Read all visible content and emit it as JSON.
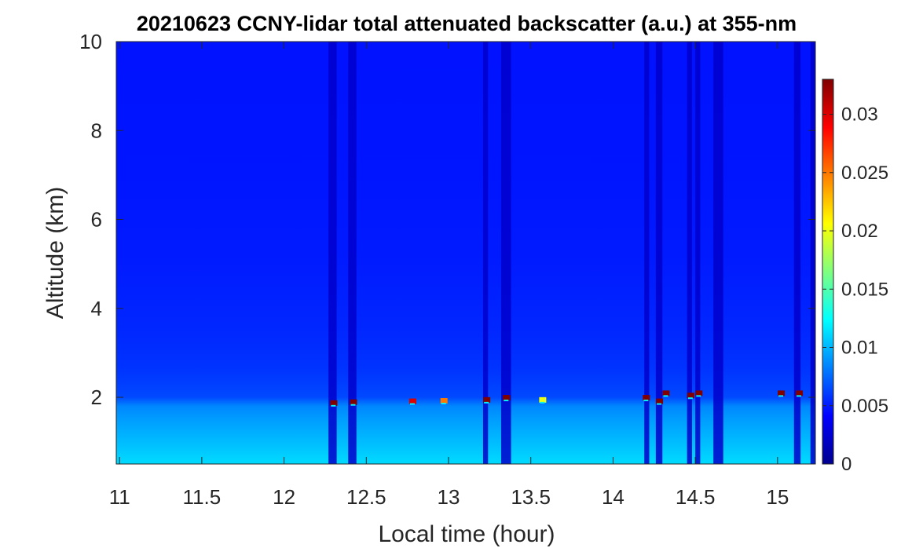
{
  "chart_data": {
    "type": "heatmap",
    "title": "20210623 CCNY-lidar total attenuated backscatter (a.u.) at 355-nm",
    "xlabel": "Local time (hour)",
    "ylabel": "Altitude (km)",
    "xlim": [
      10.98,
      15.23
    ],
    "ylim": [
      0.5,
      10
    ],
    "xticks": [
      "11",
      "11.5",
      "12",
      "12.5",
      "13",
      "13.5",
      "14",
      "14.5",
      "15"
    ],
    "xtick_values": [
      11,
      11.5,
      12,
      12.5,
      13,
      13.5,
      14,
      14.5,
      15
    ],
    "yticks": [
      "2",
      "4",
      "6",
      "8",
      "10"
    ],
    "ytick_values": [
      2,
      4,
      6,
      8,
      10
    ],
    "colormap": "jet",
    "colorbar": {
      "clim": [
        0,
        0.033
      ],
      "ticks": [
        "0",
        "0.005",
        "0.01",
        "0.015",
        "0.02",
        "0.025",
        "0.03"
      ],
      "tick_values": [
        0,
        0.005,
        0.01,
        0.015,
        0.02,
        0.025,
        0.03
      ]
    },
    "background_profile": [
      {
        "altitude_km": 0.5,
        "value": 0.0112
      },
      {
        "altitude_km": 1.0,
        "value": 0.0102
      },
      {
        "altitude_km": 1.5,
        "value": 0.0092
      },
      {
        "altitude_km": 1.8,
        "value": 0.0085
      },
      {
        "altitude_km": 2.0,
        "value": 0.0065
      },
      {
        "altitude_km": 2.6,
        "value": 0.0058
      },
      {
        "altitude_km": 3.5,
        "value": 0.0054
      },
      {
        "altitude_km": 5.0,
        "value": 0.005
      },
      {
        "altitude_km": 7.0,
        "value": 0.0048
      },
      {
        "altitude_km": 10.0,
        "value": 0.0047
      }
    ],
    "low_signal_columns": [
      {
        "t_start": 12.27,
        "t_end": 12.32
      },
      {
        "t_start": 12.39,
        "t_end": 12.44
      },
      {
        "t_start": 13.21,
        "t_end": 13.24
      },
      {
        "t_start": 13.32,
        "t_end": 13.38
      },
      {
        "t_start": 14.19,
        "t_end": 14.22
      },
      {
        "t_start": 14.26,
        "t_end": 14.3
      },
      {
        "t_start": 14.45,
        "t_end": 14.48
      },
      {
        "t_start": 14.5,
        "t_end": 14.53
      },
      {
        "t_start": 14.61,
        "t_end": 14.67
      },
      {
        "t_start": 15.1,
        "t_end": 15.14
      },
      {
        "t_start": 15.2,
        "t_end": 15.23
      }
    ],
    "cloud_layer": [
      {
        "t": 12.3,
        "altitude_km": 1.88,
        "value": 0.033
      },
      {
        "t": 12.42,
        "altitude_km": 1.9,
        "value": 0.033
      },
      {
        "t": 12.78,
        "altitude_km": 1.92,
        "value": 0.03
      },
      {
        "t": 12.97,
        "altitude_km": 1.93,
        "value": 0.025
      },
      {
        "t": 13.23,
        "altitude_km": 1.95,
        "value": 0.033
      },
      {
        "t": 13.35,
        "altitude_km": 2.0,
        "value": 0.033
      },
      {
        "t": 13.57,
        "altitude_km": 1.95,
        "value": 0.02
      },
      {
        "t": 14.2,
        "altitude_km": 2.0,
        "value": 0.033
      },
      {
        "t": 14.28,
        "altitude_km": 1.92,
        "value": 0.033
      },
      {
        "t": 14.32,
        "altitude_km": 2.1,
        "value": 0.033
      },
      {
        "t": 14.47,
        "altitude_km": 2.05,
        "value": 0.033
      },
      {
        "t": 14.52,
        "altitude_km": 2.1,
        "value": 0.033
      },
      {
        "t": 15.02,
        "altitude_km": 2.1,
        "value": 0.033
      },
      {
        "t": 15.13,
        "altitude_km": 2.1,
        "value": 0.033
      }
    ]
  }
}
